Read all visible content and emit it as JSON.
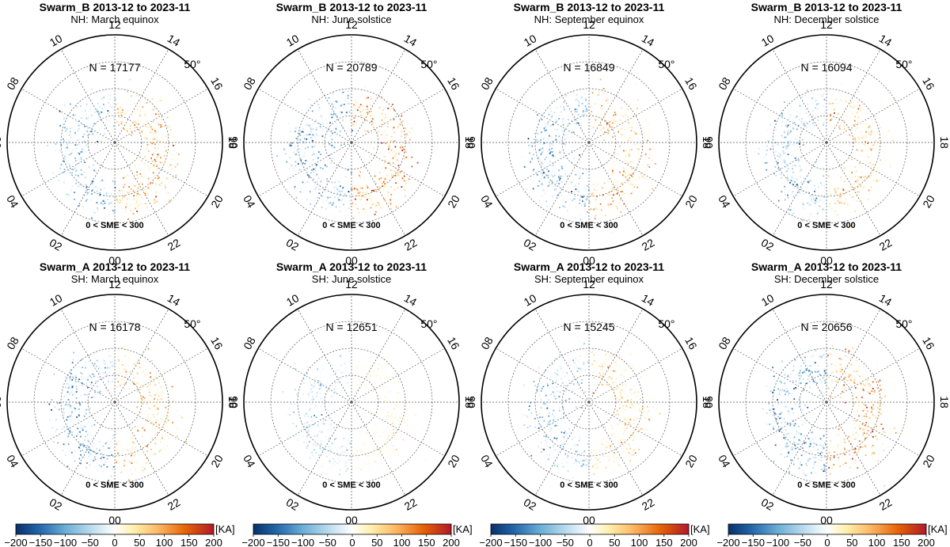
{
  "chart_data": {
    "type": "scatter",
    "coordinate_system": "polar",
    "colorbar": {
      "unit": "[KA]",
      "ticks": [
        "−200",
        "−150",
        "−100",
        "−50",
        "0",
        "50",
        "100",
        "150",
        "200"
      ],
      "range": [
        -200,
        200
      ],
      "colors": [
        "#08306b",
        "#2c7fb8",
        "#9ecae1",
        "#f7fbff",
        "#ffffff",
        "#fff3b0",
        "#fdb863",
        "#e66101",
        "#b2182b"
      ]
    },
    "mlt_labels": [
      "12",
      "14",
      "10",
      "16",
      "08",
      "18",
      "06",
      "20",
      "04",
      "22",
      "02",
      "00"
    ],
    "lat_label": "50°",
    "annotation": "0 < SME < 300",
    "panels": [
      {
        "title": "Swarm_B 2013-12 to 2023-11",
        "subtitle": "NH: March equinox",
        "n": "N = 17177",
        "dawn_strength": 0.9,
        "dusk_strength": 0.8,
        "noon_strength": 0.4
      },
      {
        "title": "Swarm_B 2013-12 to 2023-11",
        "subtitle": "NH: June solstice",
        "n": "N = 20789",
        "dawn_strength": 0.9,
        "dusk_strength": 1.0,
        "noon_strength": 1.0
      },
      {
        "title": "Swarm_B 2013-12 to 2023-11",
        "subtitle": "NH: September equinox",
        "n": "N = 16849",
        "dawn_strength": 0.9,
        "dusk_strength": 0.85,
        "noon_strength": 0.6
      },
      {
        "title": "Swarm_B 2013-12 to 2023-11",
        "subtitle": "NH: December solstice",
        "n": "N = 16094",
        "dawn_strength": 0.8,
        "dusk_strength": 0.7,
        "noon_strength": 0.2
      },
      {
        "title": "Swarm_A 2013-12 to 2023-11",
        "subtitle": "SH: March equinox",
        "n": "N = 16178",
        "dawn_strength": 0.9,
        "dusk_strength": 0.7,
        "noon_strength": 0.5
      },
      {
        "title": "Swarm_A 2013-12 to 2023-11",
        "subtitle": "SH: June solstice",
        "n": "N = 12651",
        "dawn_strength": 0.6,
        "dusk_strength": 0.35,
        "noon_strength": 0.1
      },
      {
        "title": "Swarm_A 2013-12 to 2023-11",
        "subtitle": "SH: September equinox",
        "n": "N = 15245",
        "dawn_strength": 0.8,
        "dusk_strength": 0.6,
        "noon_strength": 0.3
      },
      {
        "title": "Swarm_A 2013-12 to 2023-11",
        "subtitle": "SH: December solstice",
        "n": "N = 20656",
        "dawn_strength": 1.0,
        "dusk_strength": 1.0,
        "noon_strength": 0.8
      }
    ]
  }
}
